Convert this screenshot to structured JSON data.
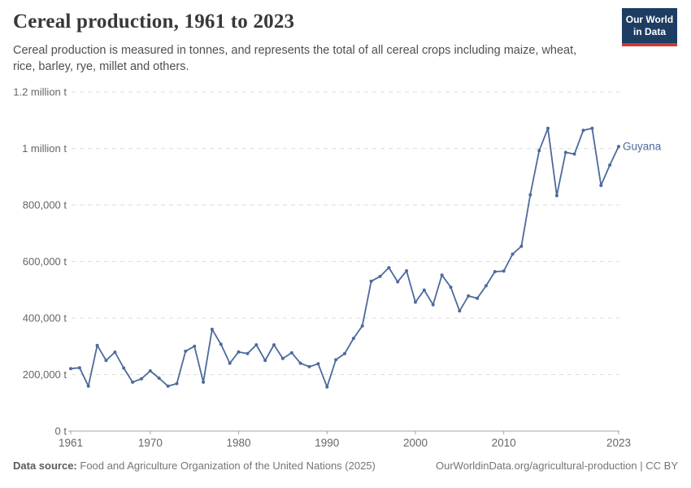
{
  "header": {
    "title": "Cereal production, 1961 to 2023",
    "subtitle": "Cereal production is measured in tonnes, and represents the total of all cereal crops including maize, wheat, rice, barley, rye, millet and others.",
    "logo": {
      "line1": "Our World",
      "line2": "in Data"
    }
  },
  "chart_data": {
    "type": "line",
    "title": "Cereal production, 1961 to 2023",
    "xlabel": "",
    "ylabel": "",
    "unit": "t",
    "xlim": [
      1961,
      2023
    ],
    "ylim": [
      0,
      1200000
    ],
    "grid": "dashed horizontal",
    "legend_position": "end-of-line label",
    "x_ticks": [
      1961,
      1970,
      1980,
      1990,
      2000,
      2010,
      2023
    ],
    "y_ticks": [
      {
        "value": 0,
        "label": "0 t"
      },
      {
        "value": 200000,
        "label": "200,000 t"
      },
      {
        "value": 400000,
        "label": "400,000 t"
      },
      {
        "value": 600000,
        "label": "600,000 t"
      },
      {
        "value": 800000,
        "label": "800,000 t"
      },
      {
        "value": 1000000,
        "label": "1 million t"
      },
      {
        "value": 1200000,
        "label": "1.2 million t"
      }
    ],
    "series": [
      {
        "name": "Guyana",
        "color": "#4C6A9C",
        "x": [
          1961,
          1962,
          1963,
          1964,
          1965,
          1966,
          1967,
          1968,
          1969,
          1970,
          1971,
          1972,
          1973,
          1974,
          1975,
          1976,
          1977,
          1978,
          1979,
          1980,
          1981,
          1982,
          1983,
          1984,
          1985,
          1986,
          1987,
          1988,
          1989,
          1990,
          1991,
          1992,
          1993,
          1994,
          1995,
          1996,
          1997,
          1998,
          1999,
          2000,
          2001,
          2002,
          2003,
          2004,
          2005,
          2006,
          2007,
          2008,
          2009,
          2010,
          2011,
          2012,
          2013,
          2014,
          2015,
          2016,
          2017,
          2018,
          2019,
          2020,
          2021,
          2022,
          2023
        ],
        "values": [
          221000,
          224000,
          159000,
          303000,
          250000,
          279000,
          223000,
          173000,
          185000,
          213000,
          187000,
          159000,
          168000,
          283000,
          300000,
          173000,
          360000,
          307000,
          240000,
          280000,
          274000,
          305000,
          250000,
          305000,
          257000,
          277000,
          240000,
          228000,
          238000,
          156000,
          252000,
          274000,
          328000,
          372000,
          530000,
          547000,
          578000,
          528000,
          567000,
          456000,
          499000,
          447000,
          552000,
          509000,
          425000,
          478000,
          470000,
          514000,
          564000,
          566000,
          626000,
          654000,
          836000,
          992000,
          1071000,
          833000,
          986000,
          980000,
          1064000,
          1071000,
          869000,
          941000,
          1007000
        ]
      }
    ]
  },
  "footer": {
    "datasource_label": "Data source:",
    "datasource": "Food and Agriculture Organization of the United Nations (2025)",
    "url": "OurWorldinData.org/agricultural-production",
    "separator": "|",
    "license": "CC BY"
  },
  "colors": {
    "line": "#4C6A9C",
    "gridline": "#dedede",
    "axis": "#a3a3a3",
    "tick_text": "#666666",
    "title_text": "#383838",
    "subtitle_text": "#4f4f4f",
    "footer_text": "#757575",
    "logo_bg": "#1d3d63",
    "logo_stripe": "#cc3b34"
  }
}
